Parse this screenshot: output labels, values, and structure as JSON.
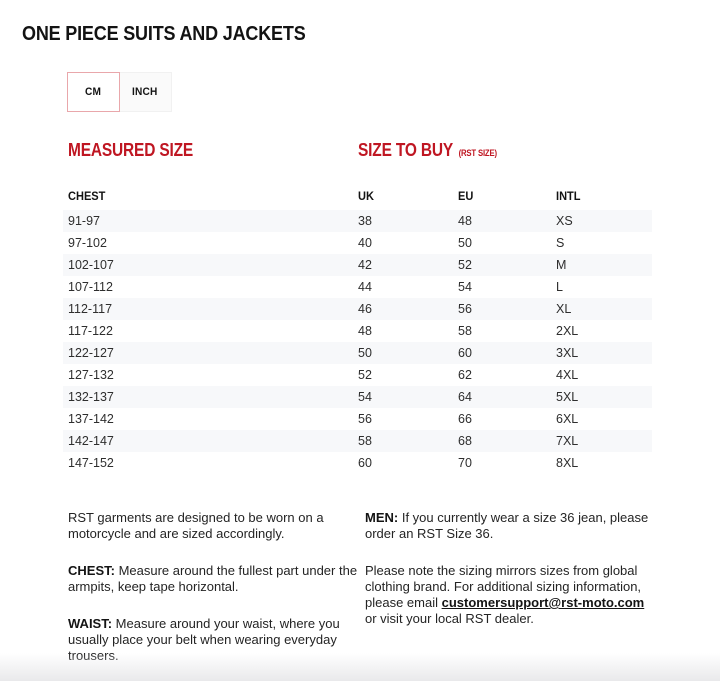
{
  "page": {
    "title": "ONE PIECE SUITS AND JACKETS"
  },
  "unit_toggle": {
    "cm_label": "CM",
    "inch_label": "INCH",
    "selected": "CM"
  },
  "table": {
    "section_measured": "MEASURED SIZE",
    "section_size_to_buy": "SIZE TO BUY",
    "section_size_to_buy_note": "(RST SIZE)",
    "columns": [
      "CHEST",
      "UK",
      "EU",
      "INTL"
    ],
    "rows": [
      [
        "91-97",
        "38",
        "48",
        "XS"
      ],
      [
        "97-102",
        "40",
        "50",
        "S"
      ],
      [
        "102-107",
        "42",
        "52",
        "M"
      ],
      [
        "107-112",
        "44",
        "54",
        "L"
      ],
      [
        "112-117",
        "46",
        "56",
        "XL"
      ],
      [
        "117-122",
        "48",
        "58",
        "2XL"
      ],
      [
        "122-127",
        "50",
        "60",
        "3XL"
      ],
      [
        "127-132",
        "52",
        "62",
        "4XL"
      ],
      [
        "132-137",
        "54",
        "64",
        "5XL"
      ],
      [
        "137-142",
        "56",
        "66",
        "6XL"
      ],
      [
        "142-147",
        "58",
        "68",
        "7XL"
      ],
      [
        "147-152",
        "60",
        "70",
        "8XL"
      ]
    ]
  },
  "notes": {
    "left": [
      {
        "bold": "",
        "text": "RST garments are designed to be worn on a motorcycle and are sized accordingly."
      },
      {
        "bold": "CHEST:",
        "text": " Measure around the fullest part under the armpits, keep tape horizontal."
      },
      {
        "bold": "WAIST:",
        "text": " Measure around your waist, where you usually place your belt when wearing everyday trousers."
      }
    ],
    "right": [
      {
        "bold": "MEN:",
        "text": " If you currently wear a size 36 jean, please order an RST Size 36."
      },
      {
        "text_before_link": "Please note the sizing mirrors sizes from global clothing brand. For additional sizing information, please email ",
        "link": "customersupport@rst-moto.com",
        "text_after_link": " or visit your local RST dealer."
      }
    ]
  },
  "colors": {
    "accent_red": "#bf1622",
    "stripe": "#f7f8fa"
  }
}
